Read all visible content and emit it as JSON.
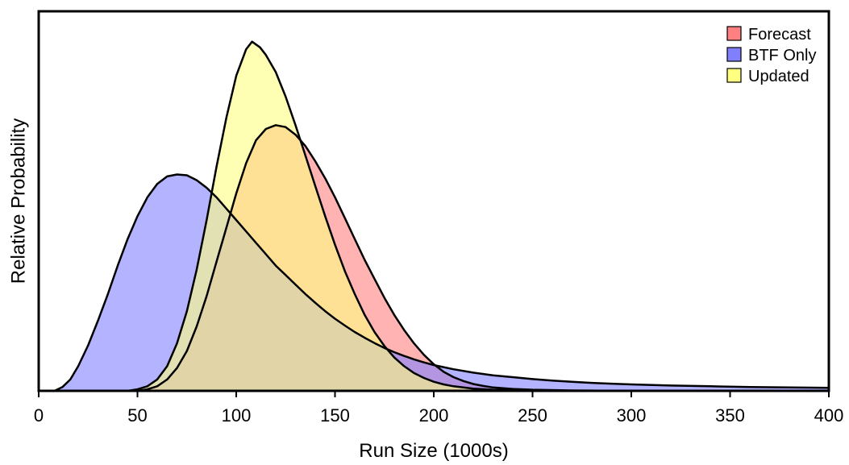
{
  "chart_data": {
    "type": "area",
    "title": "",
    "xlabel": "Run Size (1000s)",
    "ylabel": "Relative Probability",
    "xlim": [
      0,
      400
    ],
    "ylim": [
      0,
      1.0
    ],
    "x_ticks": [
      0,
      50,
      100,
      150,
      200,
      250,
      300,
      350,
      400
    ],
    "x_tick_labels": [
      "0",
      "50",
      "100",
      "150",
      "200",
      "250",
      "300",
      "350",
      "400"
    ],
    "y_ticks_shown": false,
    "grid": false,
    "legend_position": "top-right",
    "series": [
      {
        "name": "Forecast",
        "color": "#ff8080",
        "points": [
          [
            0,
            0
          ],
          [
            50,
            0
          ],
          [
            55,
            0.004
          ],
          [
            60,
            0.012
          ],
          [
            65,
            0.03
          ],
          [
            70,
            0.06
          ],
          [
            75,
            0.105
          ],
          [
            80,
            0.17
          ],
          [
            85,
            0.25
          ],
          [
            90,
            0.34
          ],
          [
            95,
            0.43
          ],
          [
            100,
            0.52
          ],
          [
            105,
            0.6
          ],
          [
            110,
            0.66
          ],
          [
            115,
            0.69
          ],
          [
            120,
            0.7
          ],
          [
            125,
            0.695
          ],
          [
            130,
            0.675
          ],
          [
            135,
            0.645
          ],
          [
            140,
            0.605
          ],
          [
            145,
            0.56
          ],
          [
            150,
            0.51
          ],
          [
            155,
            0.455
          ],
          [
            160,
            0.4
          ],
          [
            165,
            0.345
          ],
          [
            170,
            0.295
          ],
          [
            175,
            0.245
          ],
          [
            180,
            0.2
          ],
          [
            185,
            0.16
          ],
          [
            190,
            0.125
          ],
          [
            195,
            0.095
          ],
          [
            200,
            0.07
          ],
          [
            205,
            0.05
          ],
          [
            210,
            0.036
          ],
          [
            215,
            0.026
          ],
          [
            220,
            0.018
          ],
          [
            225,
            0.013
          ],
          [
            230,
            0.009
          ],
          [
            240,
            0.005
          ],
          [
            250,
            0.003
          ],
          [
            270,
            0.001
          ],
          [
            300,
            0
          ],
          [
            400,
            0
          ]
        ]
      },
      {
        "name": "BTF Only",
        "color": "#8080ff",
        "points": [
          [
            0,
            0
          ],
          [
            8,
            0
          ],
          [
            12,
            0.01
          ],
          [
            16,
            0.03
          ],
          [
            20,
            0.065
          ],
          [
            25,
            0.12
          ],
          [
            30,
            0.185
          ],
          [
            35,
            0.255
          ],
          [
            40,
            0.33
          ],
          [
            45,
            0.4
          ],
          [
            50,
            0.46
          ],
          [
            55,
            0.51
          ],
          [
            60,
            0.545
          ],
          [
            65,
            0.565
          ],
          [
            70,
            0.57
          ],
          [
            75,
            0.568
          ],
          [
            80,
            0.555
          ],
          [
            85,
            0.535
          ],
          [
            90,
            0.51
          ],
          [
            95,
            0.48
          ],
          [
            100,
            0.45
          ],
          [
            105,
            0.42
          ],
          [
            110,
            0.39
          ],
          [
            115,
            0.36
          ],
          [
            120,
            0.33
          ],
          [
            125,
            0.305
          ],
          [
            130,
            0.28
          ],
          [
            135,
            0.255
          ],
          [
            140,
            0.232
          ],
          [
            145,
            0.21
          ],
          [
            150,
            0.19
          ],
          [
            155,
            0.172
          ],
          [
            160,
            0.155
          ],
          [
            165,
            0.14
          ],
          [
            170,
            0.126
          ],
          [
            175,
            0.113
          ],
          [
            180,
            0.102
          ],
          [
            185,
            0.092
          ],
          [
            190,
            0.083
          ],
          [
            195,
            0.075
          ],
          [
            200,
            0.068
          ],
          [
            210,
            0.057
          ],
          [
            220,
            0.048
          ],
          [
            230,
            0.041
          ],
          [
            240,
            0.036
          ],
          [
            250,
            0.031
          ],
          [
            260,
            0.027
          ],
          [
            270,
            0.024
          ],
          [
            280,
            0.021
          ],
          [
            290,
            0.019
          ],
          [
            300,
            0.017
          ],
          [
            320,
            0.014
          ],
          [
            340,
            0.012
          ],
          [
            360,
            0.01
          ],
          [
            380,
            0.009
          ],
          [
            400,
            0.008
          ]
        ]
      },
      {
        "name": "Updated",
        "color": "#ffff80",
        "points": [
          [
            0,
            0
          ],
          [
            45,
            0
          ],
          [
            50,
            0.004
          ],
          [
            55,
            0.012
          ],
          [
            60,
            0.03
          ],
          [
            65,
            0.065
          ],
          [
            70,
            0.125
          ],
          [
            75,
            0.21
          ],
          [
            80,
            0.32
          ],
          [
            85,
            0.45
          ],
          [
            90,
            0.59
          ],
          [
            95,
            0.72
          ],
          [
            100,
            0.83
          ],
          [
            105,
            0.9
          ],
          [
            108,
            0.92
          ],
          [
            112,
            0.905
          ],
          [
            115,
            0.885
          ],
          [
            120,
            0.84
          ],
          [
            125,
            0.775
          ],
          [
            130,
            0.7
          ],
          [
            135,
            0.62
          ],
          [
            140,
            0.54
          ],
          [
            145,
            0.46
          ],
          [
            150,
            0.385
          ],
          [
            155,
            0.315
          ],
          [
            160,
            0.255
          ],
          [
            165,
            0.2
          ],
          [
            170,
            0.155
          ],
          [
            175,
            0.118
          ],
          [
            180,
            0.088
          ],
          [
            185,
            0.065
          ],
          [
            190,
            0.047
          ],
          [
            195,
            0.034
          ],
          [
            200,
            0.024
          ],
          [
            205,
            0.017
          ],
          [
            210,
            0.012
          ],
          [
            220,
            0.006
          ],
          [
            230,
            0.003
          ],
          [
            250,
            0.001
          ],
          [
            270,
            0
          ],
          [
            400,
            0
          ]
        ]
      }
    ]
  }
}
